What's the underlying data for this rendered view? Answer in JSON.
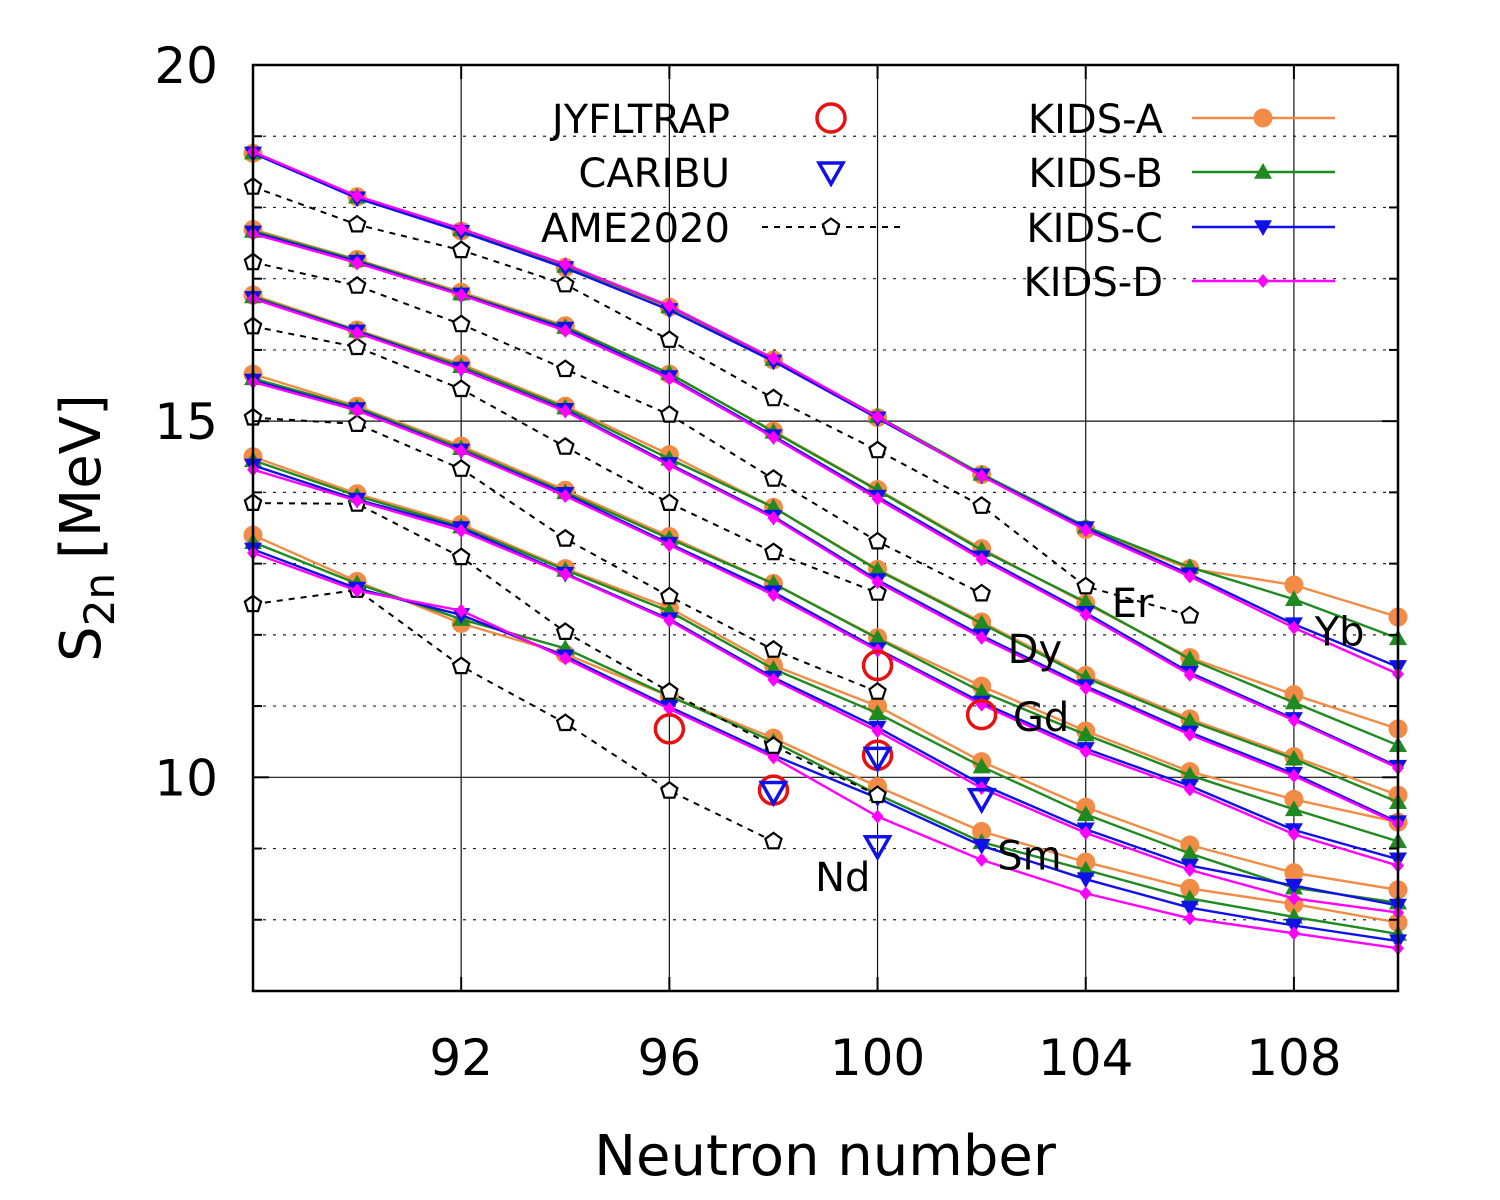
{
  "chart_data": {
    "type": "line",
    "xlabel": "Neutron number",
    "ylabel": {
      "main": "S",
      "sub": "2n",
      "unit": "[MeV]"
    },
    "xlim": [
      88,
      110
    ],
    "ylim": [
      7,
      20
    ],
    "xticks": [
      92,
      96,
      100,
      104,
      108
    ],
    "yticks_labeled": [
      10,
      15,
      20
    ],
    "yticks_minor": [
      8,
      9,
      11,
      12,
      13,
      14,
      16,
      17,
      18,
      19
    ],
    "x": [
      88,
      90,
      92,
      94,
      96,
      98,
      100,
      102,
      104,
      106,
      108,
      110
    ],
    "legend": [
      {
        "key": "jyfltrap",
        "label": "JYFLTRAP"
      },
      {
        "key": "caribu",
        "label": "CARIBU"
      },
      {
        "key": "ame2020",
        "label": "AME2020"
      },
      {
        "key": "kids_a",
        "label": "KIDS-A"
      },
      {
        "key": "kids_b",
        "label": "KIDS-B"
      },
      {
        "key": "kids_c",
        "label": "KIDS-C"
      },
      {
        "key": "kids_d",
        "label": "KIDS-D"
      }
    ],
    "styles": {
      "kids_a": {
        "color": "#f28b45",
        "marker": "circle"
      },
      "kids_b": {
        "color": "#1f8a1f",
        "marker": "triangle-up"
      },
      "kids_c": {
        "color": "#1010e8",
        "marker": "triangle-down"
      },
      "kids_d": {
        "color": "#ff00ff",
        "marker": "diamond"
      },
      "ame2020": {
        "color": "#000000",
        "marker": "pentagon-open"
      },
      "jyfltrap": {
        "color": "#e81010",
        "marker": "circle-open"
      },
      "caribu": {
        "color": "#1010e8",
        "marker": "triangle-down-open"
      }
    },
    "isotopes": [
      {
        "name": "Nd",
        "label_pos": {
          "x": 98.8,
          "y": 8.6
        },
        "ame2020": [
          12.43,
          12.63,
          11.56,
          10.76,
          9.81,
          9.1
        ],
        "kids_a": [
          13.4,
          12.75,
          12.16,
          11.73,
          11.14,
          10.55,
          9.87,
          9.24,
          8.81,
          8.44,
          8.22,
          7.96
        ],
        "kids_b": [
          13.3,
          12.72,
          12.22,
          11.81,
          11.14,
          10.5,
          9.76,
          9.09,
          8.7,
          8.3,
          8.04,
          7.8
        ],
        "kids_c": [
          13.2,
          12.65,
          12.28,
          11.7,
          10.99,
          10.31,
          9.71,
          9.04,
          8.57,
          8.17,
          7.92,
          7.7
        ],
        "kids_d": [
          13.15,
          12.62,
          12.34,
          11.67,
          10.96,
          10.28,
          9.45,
          8.84,
          8.37,
          8.02,
          7.81,
          7.6
        ]
      },
      {
        "name": "Sm",
        "label_pos": {
          "x": 102.3,
          "y": 8.9
        },
        "ame2020": [
          13.85,
          13.84,
          13.09,
          12.04,
          11.2,
          10.44,
          9.75
        ],
        "kids_a": [
          14.5,
          13.98,
          13.55,
          12.93,
          12.38,
          11.57,
          11.0,
          10.22,
          9.58,
          9.05,
          8.66,
          8.42
        ],
        "kids_b": [
          14.45,
          13.95,
          13.52,
          12.91,
          12.33,
          11.52,
          10.9,
          10.15,
          9.48,
          8.93,
          8.45,
          8.24
        ],
        "kids_c": [
          14.38,
          13.9,
          13.5,
          12.86,
          12.22,
          11.4,
          10.7,
          9.9,
          9.27,
          8.76,
          8.48,
          8.2
        ],
        "kids_d": [
          14.32,
          13.88,
          13.46,
          12.85,
          12.2,
          11.37,
          10.65,
          9.85,
          9.22,
          8.7,
          8.3,
          8.1
        ]
      },
      {
        "name": "Gd",
        "label_pos": {
          "x": 102.6,
          "y": 10.85
        },
        "ame2020": [
          15.05,
          14.96,
          14.33,
          13.35,
          12.54,
          11.79,
          11.2
        ],
        "kids_a": [
          15.66,
          15.21,
          14.65,
          14.03,
          13.38,
          12.72,
          11.96,
          11.28,
          10.65,
          10.08,
          9.69,
          9.37
        ],
        "kids_b": [
          15.6,
          15.19,
          14.62,
          14.0,
          13.35,
          12.72,
          11.95,
          11.2,
          10.6,
          10.03,
          9.55,
          9.1
        ],
        "kids_c": [
          15.57,
          15.17,
          14.59,
          13.98,
          13.28,
          12.6,
          11.8,
          11.05,
          10.4,
          9.88,
          9.26,
          8.85
        ],
        "kids_d": [
          15.55,
          15.15,
          14.58,
          13.95,
          13.26,
          12.56,
          11.78,
          11.02,
          10.36,
          9.83,
          9.2,
          8.76
        ]
      },
      {
        "name": "Dy",
        "label_pos": {
          "x": 102.5,
          "y": 11.8
        },
        "ame2020": [
          16.33,
          16.04,
          15.45,
          14.64,
          13.85,
          13.16,
          12.59
        ],
        "kids_a": [
          16.77,
          16.28,
          15.8,
          15.21,
          14.53,
          13.79,
          12.92,
          12.18,
          11.43,
          10.82,
          10.29,
          9.75
        ],
        "kids_b": [
          16.75,
          16.27,
          15.77,
          15.19,
          14.47,
          13.79,
          12.91,
          12.16,
          11.4,
          10.79,
          10.26,
          9.65
        ],
        "kids_c": [
          16.73,
          16.26,
          15.74,
          15.16,
          14.4,
          13.66,
          12.77,
          11.99,
          11.28,
          10.63,
          10.05,
          9.37
        ],
        "kids_d": [
          16.72,
          16.24,
          15.73,
          15.14,
          14.38,
          13.64,
          12.74,
          11.96,
          11.25,
          10.6,
          10.02,
          9.35
        ]
      },
      {
        "name": "Er",
        "label_pos": {
          "x": 104.5,
          "y": 12.45
        },
        "ame2020": [
          17.23,
          16.9,
          16.36,
          15.73,
          15.09,
          14.19,
          13.31,
          12.58
        ],
        "kids_a": [
          17.69,
          17.27,
          16.81,
          16.34,
          15.66,
          14.86,
          14.04,
          13.21,
          12.44,
          11.68,
          11.16,
          10.68
        ],
        "kids_b": [
          17.67,
          17.26,
          16.79,
          16.32,
          15.67,
          14.85,
          14.03,
          13.19,
          12.46,
          11.66,
          11.05,
          10.45
        ],
        "kids_c": [
          17.65,
          17.24,
          16.78,
          16.3,
          15.62,
          14.79,
          13.94,
          13.09,
          12.31,
          11.47,
          10.82,
          10.15
        ],
        "kids_d": [
          17.63,
          17.22,
          16.77,
          16.27,
          15.6,
          14.77,
          13.91,
          13.06,
          12.28,
          11.44,
          10.8,
          10.13
        ]
      },
      {
        "name": "Yb",
        "label_pos": {
          "x": 108.4,
          "y": 12.05
        },
        "ame2020": [
          18.29,
          17.76,
          17.4,
          16.92,
          16.14,
          15.32,
          14.59,
          13.81,
          12.68,
          12.27
        ],
        "kids_a": [
          18.76,
          18.15,
          17.67,
          17.16,
          16.6,
          15.86,
          15.05,
          14.25,
          13.48,
          12.93,
          12.7,
          12.25
        ],
        "kids_b": [
          18.77,
          18.15,
          17.69,
          17.18,
          16.61,
          15.87,
          15.07,
          14.26,
          13.52,
          12.95,
          12.5,
          11.95
        ],
        "kids_c": [
          18.76,
          18.13,
          17.66,
          17.15,
          16.56,
          15.84,
          15.04,
          14.24,
          13.5,
          12.85,
          12.15,
          11.55
        ],
        "kids_d": [
          18.78,
          18.16,
          17.7,
          17.2,
          16.62,
          15.88,
          15.06,
          14.23,
          13.47,
          12.82,
          12.1,
          11.45
        ]
      }
    ],
    "ame2020_start_x": {
      "Nd": 88,
      "Sm": 88,
      "Gd": 88,
      "Dy": 88,
      "Er": 88,
      "Yb": 88
    },
    "jyfltrap_points": [
      {
        "x": 96,
        "y": 10.68
      },
      {
        "x": 98,
        "y": 9.82
      },
      {
        "x": 100,
        "y": 10.31
      },
      {
        "x": 100,
        "y": 11.57
      },
      {
        "x": 102,
        "y": 10.88
      }
    ],
    "caribu_points": [
      {
        "x": 98,
        "y": 9.8
      },
      {
        "x": 100,
        "y": 9.04
      },
      {
        "x": 100,
        "y": 10.28
      },
      {
        "x": 102,
        "y": 9.7
      }
    ]
  }
}
